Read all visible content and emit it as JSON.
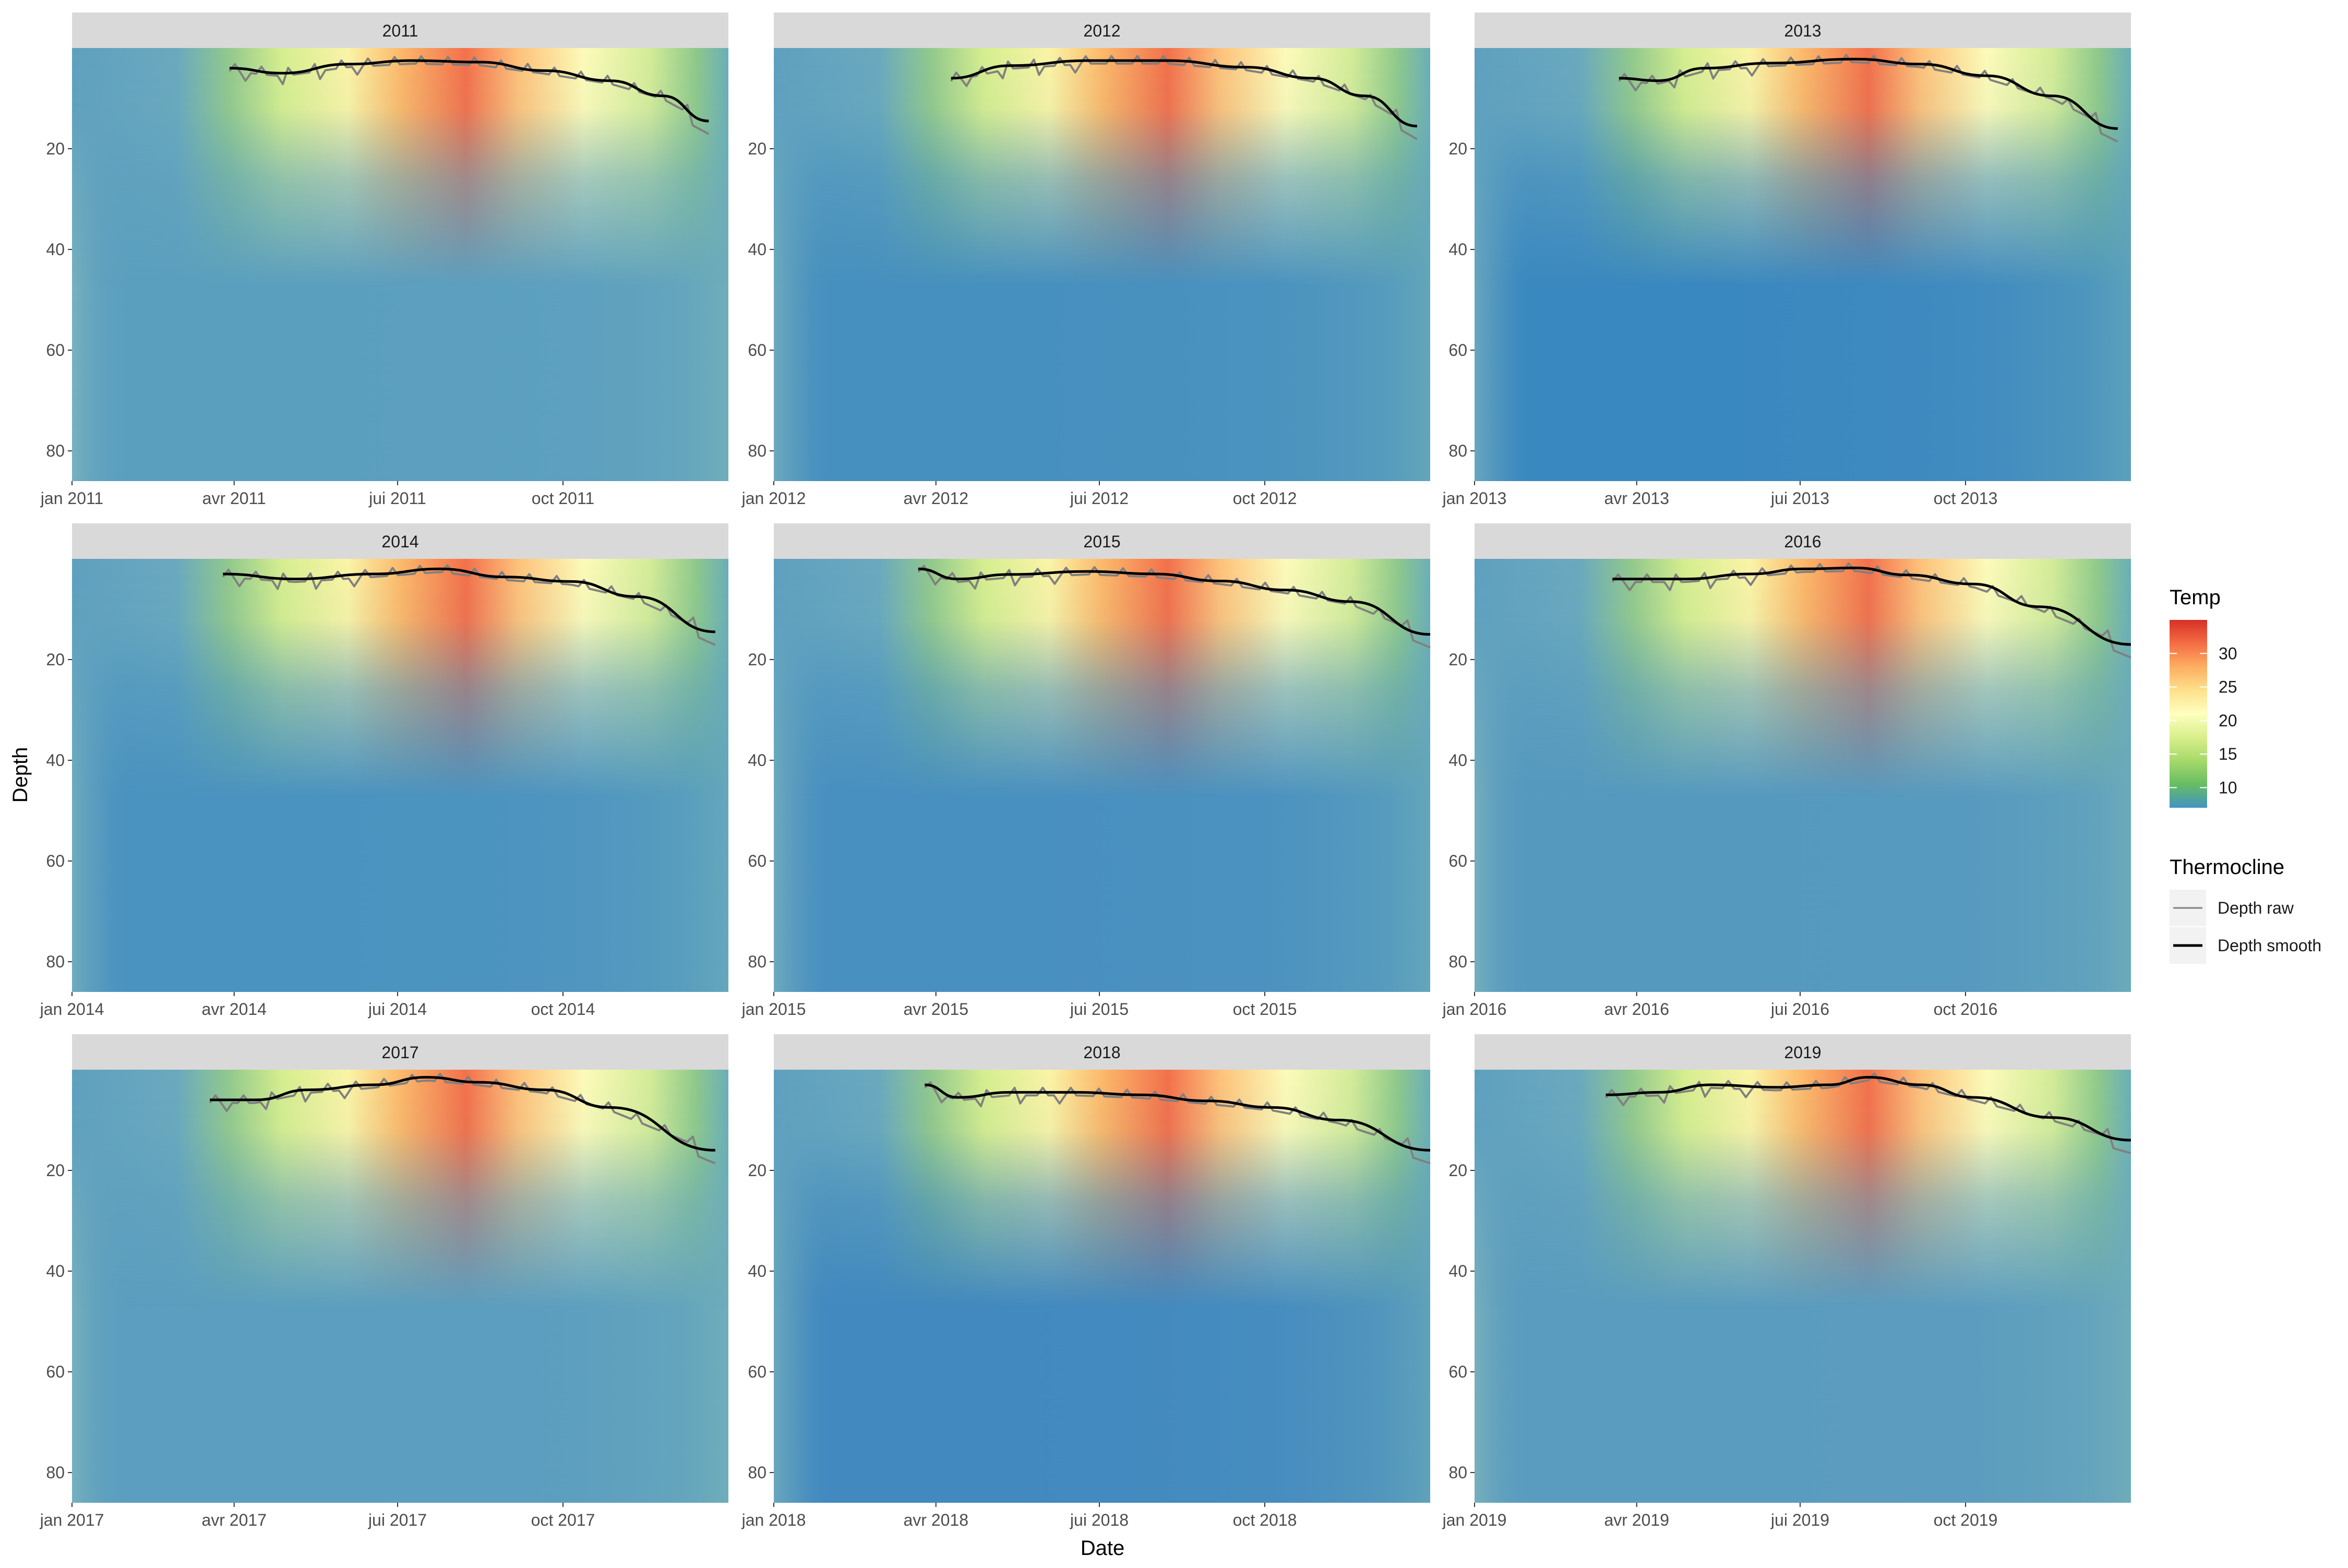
{
  "chart_data": {
    "type": "heatmap",
    "layout": "facet-grid 3x3",
    "xlabel": "Date",
    "ylabel": "Depth",
    "ylim": [
      86,
      0
    ],
    "y_ticks": [
      20,
      40,
      60,
      80
    ],
    "grid": false,
    "legend_placement": "right",
    "x_tick_labels": [
      "jan",
      "avr",
      "jui",
      "oct"
    ],
    "colorbar": {
      "title": "Temp",
      "ticks": [
        30,
        25,
        20,
        15,
        10
      ],
      "range": [
        7,
        35
      ],
      "colors": [
        "#4393c3",
        "#66bd63",
        "#a6d96a",
        "#d9ef8b",
        "#ffffbf",
        "#fee08b",
        "#fdae61",
        "#f46d43",
        "#d73027"
      ]
    },
    "line_legend": {
      "title": "Thermocline",
      "items": [
        {
          "label": "Depth raw",
          "color": "#808080"
        },
        {
          "label": "Depth smooth",
          "color": "#000000"
        }
      ]
    },
    "panels": [
      {
        "year": "2011",
        "deep_color": "#5b9fbf",
        "smooth": [
          [
            0.24,
            4
          ],
          [
            0.32,
            5
          ],
          [
            0.42,
            3.2
          ],
          [
            0.52,
            2.5
          ],
          [
            0.62,
            2.8
          ],
          [
            0.72,
            4.5
          ],
          [
            0.82,
            6.5
          ],
          [
            0.9,
            9.5
          ],
          [
            0.97,
            14.5
          ]
        ]
      },
      {
        "year": "2012",
        "deep_color": "#4690bf",
        "smooth": [
          [
            0.27,
            6
          ],
          [
            0.36,
            3.5
          ],
          [
            0.48,
            2.5
          ],
          [
            0.6,
            2.5
          ],
          [
            0.72,
            3.8
          ],
          [
            0.82,
            6
          ],
          [
            0.9,
            9.5
          ],
          [
            0.98,
            15.5
          ]
        ]
      },
      {
        "year": "2013",
        "deep_color": "#3a88c0",
        "smooth": [
          [
            0.22,
            6
          ],
          [
            0.28,
            6.5
          ],
          [
            0.35,
            4
          ],
          [
            0.45,
            3
          ],
          [
            0.58,
            2.2
          ],
          [
            0.68,
            3.2
          ],
          [
            0.78,
            5.5
          ],
          [
            0.88,
            9.5
          ],
          [
            0.98,
            16
          ]
        ]
      },
      {
        "year": "2014",
        "deep_color": "#4a93c0",
        "smooth": [
          [
            0.23,
            3
          ],
          [
            0.34,
            4
          ],
          [
            0.46,
            3
          ],
          [
            0.56,
            2
          ],
          [
            0.66,
            3.6
          ],
          [
            0.76,
            4.5
          ],
          [
            0.86,
            7.5
          ],
          [
            0.98,
            14.5
          ]
        ]
      },
      {
        "year": "2015",
        "deep_color": "#4890c0",
        "smooth": [
          [
            0.22,
            2
          ],
          [
            0.28,
            4
          ],
          [
            0.36,
            3.1
          ],
          [
            0.48,
            2.5
          ],
          [
            0.58,
            3
          ],
          [
            0.68,
            4.4
          ],
          [
            0.78,
            6.2
          ],
          [
            0.88,
            8.5
          ],
          [
            1.0,
            15
          ]
        ]
      },
      {
        "year": "2016",
        "deep_color": "#5599bf",
        "smooth": [
          [
            0.21,
            4
          ],
          [
            0.32,
            4
          ],
          [
            0.42,
            3
          ],
          [
            0.5,
            2
          ],
          [
            0.58,
            1.8
          ],
          [
            0.66,
            3.2
          ],
          [
            0.76,
            5
          ],
          [
            0.86,
            9.5
          ],
          [
            1.0,
            17
          ]
        ]
      },
      {
        "year": "2017",
        "deep_color": "#5b9ebf",
        "smooth": [
          [
            0.21,
            6
          ],
          [
            0.28,
            6
          ],
          [
            0.36,
            4
          ],
          [
            0.46,
            3
          ],
          [
            0.54,
            1.5
          ],
          [
            0.62,
            2.5
          ],
          [
            0.72,
            4
          ],
          [
            0.82,
            7.5
          ],
          [
            0.98,
            16
          ]
        ]
      },
      {
        "year": "2018",
        "deep_color": "#4189bf",
        "smooth": [
          [
            0.23,
            3
          ],
          [
            0.28,
            5.5
          ],
          [
            0.36,
            4.5
          ],
          [
            0.46,
            4.5
          ],
          [
            0.56,
            5
          ],
          [
            0.66,
            6.2
          ],
          [
            0.76,
            7.5
          ],
          [
            0.86,
            10
          ],
          [
            1.0,
            16
          ]
        ]
      },
      {
        "year": "2019",
        "deep_color": "#5a9cbf",
        "smooth": [
          [
            0.2,
            5
          ],
          [
            0.28,
            4.5
          ],
          [
            0.36,
            3
          ],
          [
            0.46,
            3.5
          ],
          [
            0.54,
            3
          ],
          [
            0.6,
            1.5
          ],
          [
            0.68,
            3
          ],
          [
            0.76,
            5.5
          ],
          [
            0.88,
            9.5
          ],
          [
            1.0,
            14
          ]
        ]
      }
    ]
  }
}
